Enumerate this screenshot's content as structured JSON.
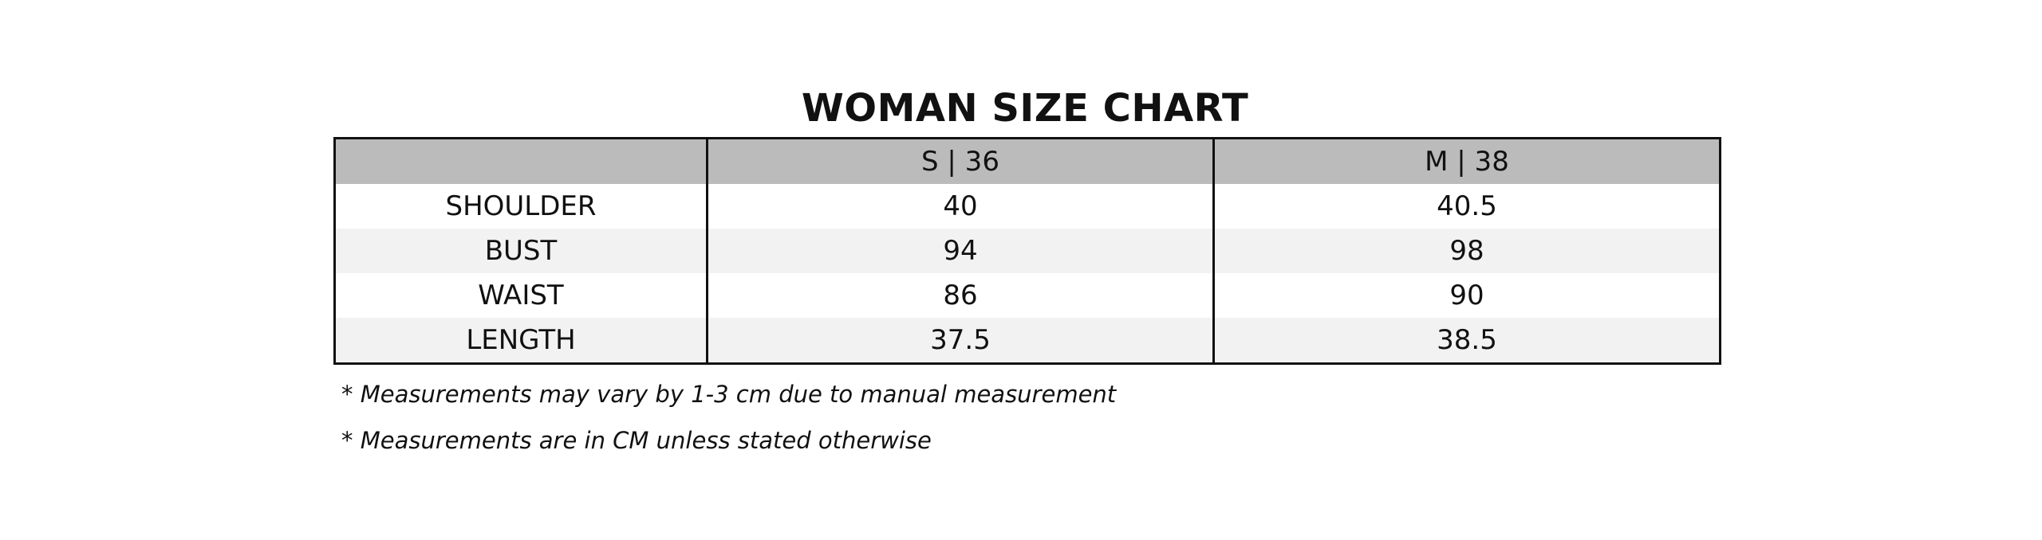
{
  "header": {
    "title": "WOMAN SIZE CHART"
  },
  "table": {
    "columns": [
      "S | 36",
      "M | 38"
    ],
    "rows": [
      [
        "SHOULDER",
        "40",
        "40.5"
      ],
      [
        "BUST",
        "94",
        "98"
      ],
      [
        "WAIST",
        "86",
        "90"
      ],
      [
        "LENGTH",
        "37.5",
        "38.5"
      ]
    ]
  },
  "notes": [
    "* Measurements may vary by 1-3 cm due to manual measurement",
    "* Measurements are in CM unless stated otherwise"
  ]
}
